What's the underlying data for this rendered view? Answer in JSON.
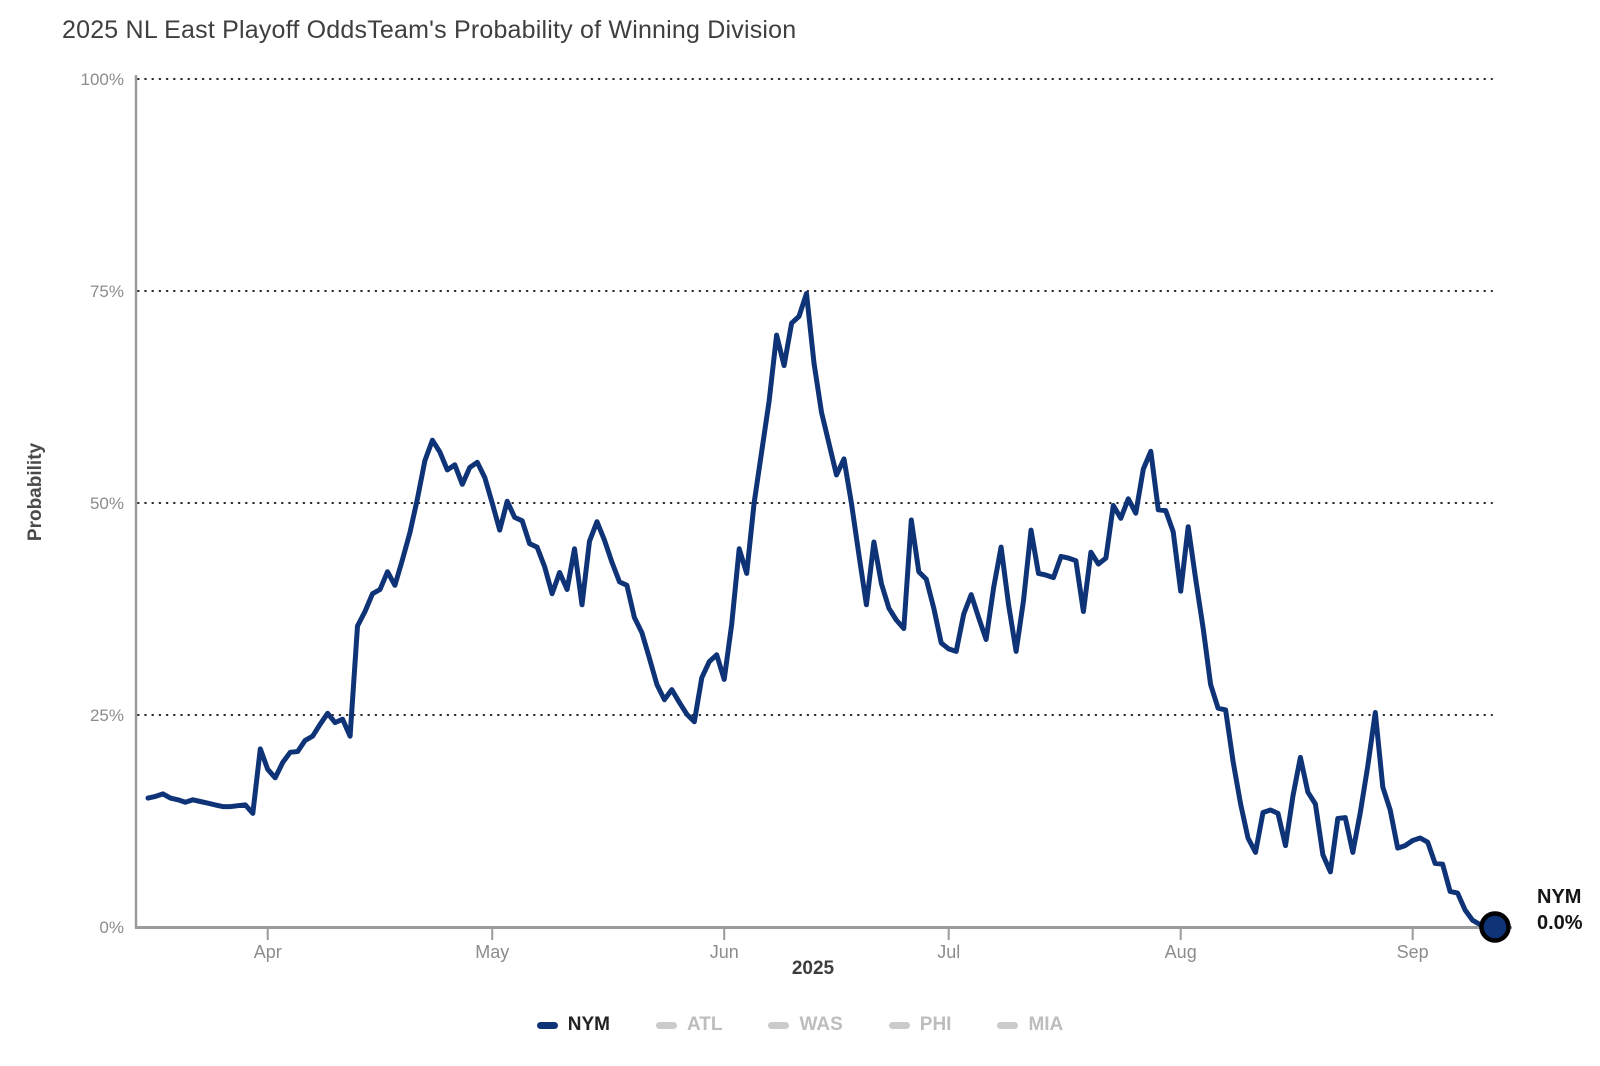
{
  "chart_data": {
    "type": "line",
    "title": "2025 NL East Playoff Odds",
    "subtitle": "Team's Probability of Winning Division",
    "xlabel": "2025",
    "ylabel": "Probability",
    "ylim": [
      0,
      100
    ],
    "grid": "dotted horizontal",
    "legend_position": "bottom",
    "yticks": [
      {
        "label": "0%",
        "value": 0
      },
      {
        "label": "25%",
        "value": 25
      },
      {
        "label": "50%",
        "value": 50
      },
      {
        "label": "75%",
        "value": 75
      },
      {
        "label": "100%",
        "value": 100
      }
    ],
    "xticks": [
      {
        "label": "Apr",
        "day_index": 16
      },
      {
        "label": "May",
        "day_index": 46
      },
      {
        "label": "Jun",
        "day_index": 77
      },
      {
        "label": "Jul",
        "day_index": 107
      },
      {
        "label": "Aug",
        "day_index": 138
      },
      {
        "label": "Sep",
        "day_index": 169
      }
    ],
    "series": [
      {
        "name": "NYM",
        "color": "#0f3377",
        "visible": true,
        "start_date": "2025-03-16",
        "frequency": "daily",
        "values": [
          15.2,
          15.4,
          15.7,
          15.2,
          15.0,
          14.7,
          15.0,
          14.8,
          14.6,
          14.4,
          14.2,
          14.2,
          14.3,
          14.4,
          13.4,
          21.0,
          18.6,
          17.6,
          19.4,
          20.6,
          20.7,
          22.0,
          22.5,
          23.9,
          25.2,
          24.1,
          24.5,
          22.5,
          35.5,
          37.2,
          39.3,
          39.8,
          41.9,
          40.3,
          43.3,
          46.5,
          50.5,
          55.0,
          57.4,
          56.0,
          53.9,
          54.5,
          52.2,
          54.2,
          54.8,
          53.0,
          50.0,
          46.8,
          50.2,
          48.3,
          47.9,
          45.2,
          44.8,
          42.5,
          39.3,
          41.8,
          39.8,
          44.6,
          38.0,
          45.5,
          47.8,
          45.6,
          43.0,
          40.7,
          40.3,
          36.5,
          34.7,
          31.7,
          28.6,
          26.8,
          28.0,
          26.5,
          25.1,
          24.2,
          29.4,
          31.3,
          32.1,
          29.2,
          35.7,
          44.6,
          41.7,
          50.0,
          56.0,
          62.0,
          69.8,
          66.2,
          71.2,
          72.0,
          74.7,
          66.5,
          60.7,
          57.0,
          53.3,
          55.2,
          50.0,
          43.9,
          38.0,
          45.4,
          40.5,
          37.6,
          36.2,
          35.2,
          48.0,
          41.9,
          41.0,
          37.6,
          33.5,
          32.8,
          32.5,
          36.9,
          39.2,
          36.5,
          33.9,
          40.0,
          44.8,
          38.0,
          32.5,
          38.5,
          46.8,
          41.7,
          41.5,
          41.2,
          43.7,
          43.5,
          43.2,
          37.2,
          44.2,
          42.8,
          43.5,
          49.7,
          48.2,
          50.5,
          48.8,
          54.0,
          56.1,
          49.2,
          49.1,
          46.6,
          39.6,
          47.2,
          41.0,
          35.2,
          28.6,
          25.8,
          25.6,
          19.5,
          14.5,
          10.5,
          8.8,
          13.5,
          13.8,
          13.4,
          9.6,
          15.5,
          20.0,
          15.9,
          14.5,
          8.5,
          6.5,
          12.8,
          12.9,
          8.8,
          13.5,
          19.0,
          25.3,
          16.5,
          13.8,
          9.3,
          9.6,
          10.2,
          10.5,
          10.0,
          7.5,
          7.4,
          4.2,
          4.0,
          2.0,
          0.8,
          0.3,
          0.1,
          0.0
        ]
      },
      {
        "name": "ATL",
        "visible": false
      },
      {
        "name": "WAS",
        "visible": false
      },
      {
        "name": "PHI",
        "visible": false
      },
      {
        "name": "MIA",
        "visible": false
      }
    ],
    "end_label": {
      "team": "NYM",
      "value": "0.0%"
    }
  },
  "legend": {
    "items": [
      {
        "label": "NYM",
        "active": true,
        "swatch_color": "#0f3377",
        "text_color": "#222222"
      },
      {
        "label": "ATL",
        "active": false,
        "swatch_color": "#cbcbcb",
        "text_color": "#bdbdbd"
      },
      {
        "label": "WAS",
        "active": false,
        "swatch_color": "#cbcbcb",
        "text_color": "#bdbdbd"
      },
      {
        "label": "PHI",
        "active": false,
        "swatch_color": "#cbcbcb",
        "text_color": "#bdbdbd"
      },
      {
        "label": "MIA",
        "active": false,
        "swatch_color": "#cbcbcb",
        "text_color": "#bdbdbd"
      }
    ]
  },
  "style": {
    "line_color": "#0f3377",
    "grid_color": "#222222",
    "axis_color": "#9b9b9b",
    "tick_text_color": "#8c8c8c"
  }
}
